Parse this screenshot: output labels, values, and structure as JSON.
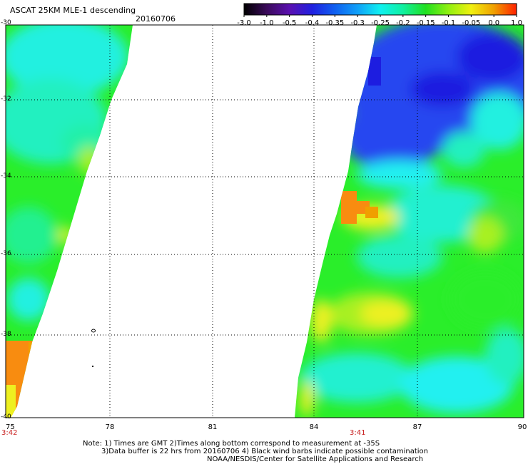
{
  "title": "ASCAT 25KM MLE-1 descending",
  "date": "20160706",
  "colorbar": {
    "ticks": [
      "-3.0",
      "-1.0",
      "-0.5",
      "-0.4",
      "-0.35",
      "-0.3",
      "-0.25",
      "-0.2",
      "-0.15",
      "-0.1",
      "-0.05",
      "0.0",
      "1.0"
    ],
    "colors": [
      "#000000",
      "#3a0a5a",
      "#5a10b0",
      "#2020e0",
      "#1060f0",
      "#10a0f8",
      "#10f0f0",
      "#10f0a0",
      "#20e020",
      "#90f010",
      "#f0f010",
      "#f0a000",
      "#ff2000"
    ]
  },
  "map": {
    "lat_labels": [
      "-30",
      "-32",
      "-34",
      "-36",
      "-38",
      "-40"
    ],
    "lon_labels": [
      "75",
      "78",
      "81",
      "84",
      "87",
      "90"
    ],
    "times": [
      "3:42",
      "3:41"
    ],
    "palette": {
      "blue_dark": "#1d1de0",
      "blue": "#2546f0",
      "blue_light": "#3a80f8",
      "cyan": "#22f0f0",
      "cyan_green": "#22f0a8",
      "green": "#2aee2a",
      "yellow_green": "#a8f020",
      "yellow": "#eef020",
      "orange": "#f88c10"
    }
  },
  "notes": {
    "line1": "Note: 1) Times are GMT 2)Times along bottom correspond to measurement at -35S",
    "line2": "3)Data buffer is 22 hrs from 20160706 4) Black wind barbs indicate possible contamination",
    "line3": "NOAA/NESDIS/Center for Satellite Applications and Research"
  }
}
